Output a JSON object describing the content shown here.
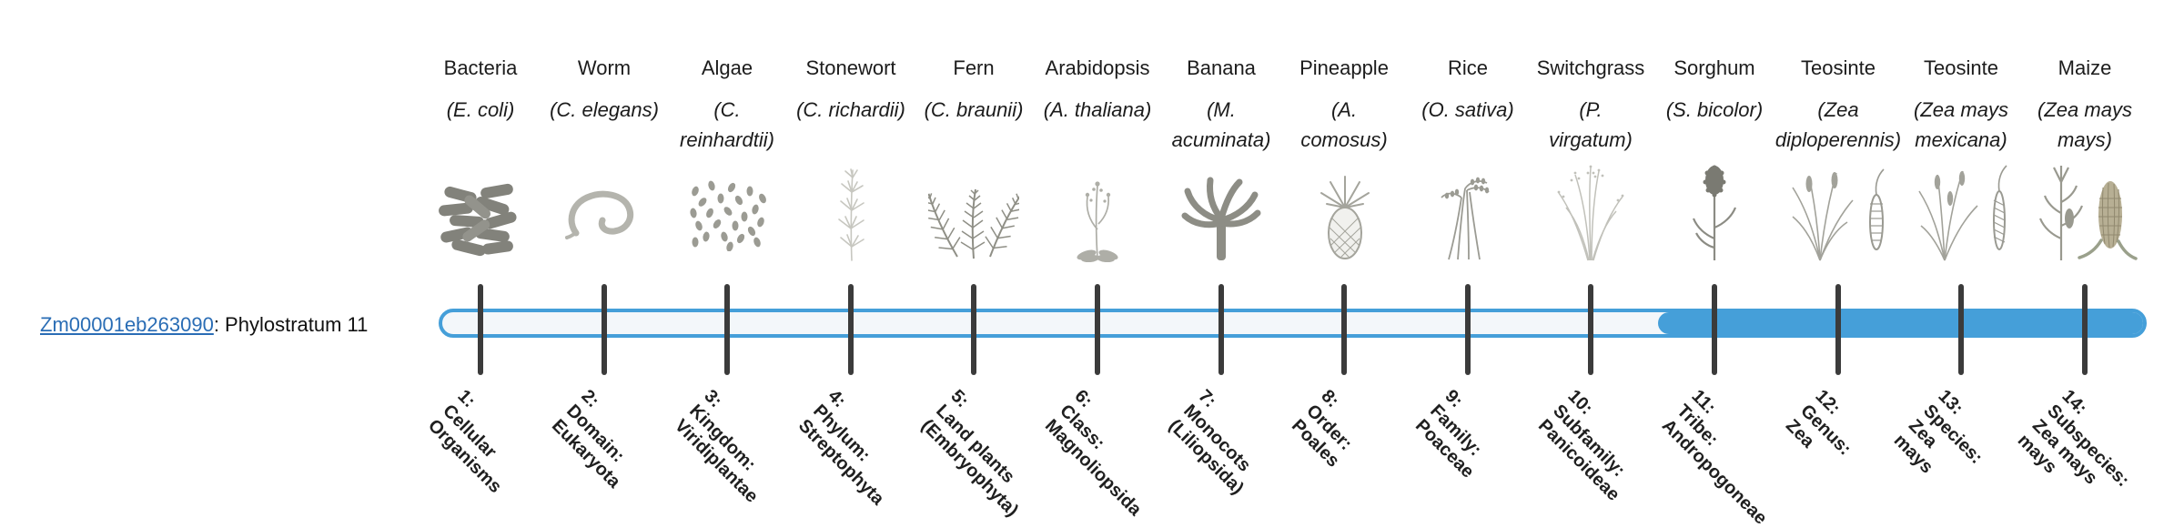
{
  "gene_label": {
    "link_text": "Zm00001eb263090",
    "rest_text": ": Phylostratum 11"
  },
  "phylostratum": {
    "value": 11,
    "filled_range": [
      11,
      14
    ],
    "total_strata": 14
  },
  "colors": {
    "accent_blue": "#459fd9",
    "bar_track": "#f3f7fa",
    "tick": "#3b3b3b",
    "link": "#2a6db5"
  },
  "organisms": [
    {
      "name": "Bacteria",
      "latin_lines": [
        "(E. coli)"
      ],
      "icon": "bacteria-icon",
      "tick_lines": [
        "1:",
        "Cellular",
        "Organisms"
      ]
    },
    {
      "name": "Worm",
      "latin_lines": [
        "(C. elegans)"
      ],
      "icon": "worm-icon",
      "tick_lines": [
        "2:",
        "Domain:",
        "Eukaryota"
      ]
    },
    {
      "name": "Algae",
      "latin_lines": [
        "(C.",
        "reinhardtii)"
      ],
      "icon": "algae-icon",
      "tick_lines": [
        "3:",
        "Kingdom:",
        "Viridiplantae"
      ]
    },
    {
      "name": "Stonewort",
      "latin_lines": [
        "(C. richardii)"
      ],
      "icon": "stonewort-icon",
      "tick_lines": [
        "4:",
        "Phylum:",
        "Streptophyta"
      ]
    },
    {
      "name": "Fern",
      "latin_lines": [
        "(C. braunii)"
      ],
      "icon": "fern-icon",
      "tick_lines": [
        "5:",
        "Land plants",
        "(Embryophyta)"
      ]
    },
    {
      "name": "Arabidopsis",
      "latin_lines": [
        "(A. thaliana)"
      ],
      "icon": "arabidopsis-icon",
      "tick_lines": [
        "6:",
        "Class:",
        "Magnoliopsida"
      ]
    },
    {
      "name": "Banana",
      "latin_lines": [
        "(M.",
        "acuminata)"
      ],
      "icon": "banana-icon",
      "tick_lines": [
        "7:",
        "Monocots",
        "(Liliopsida)"
      ]
    },
    {
      "name": "Pineapple",
      "latin_lines": [
        "(A.",
        "comosus)"
      ],
      "icon": "pineapple-icon",
      "tick_lines": [
        "8:",
        "Order:",
        "Poales"
      ]
    },
    {
      "name": "Rice",
      "latin_lines": [
        "(O. sativa)"
      ],
      "icon": "rice-icon",
      "tick_lines": [
        "9:",
        "Family:",
        "Poaceae"
      ]
    },
    {
      "name": "Switchgrass",
      "latin_lines": [
        "(P.",
        "virgatum)"
      ],
      "icon": "switchgrass-icon",
      "tick_lines": [
        "10:",
        "Subfamily:",
        "Panicoideae"
      ]
    },
    {
      "name": "Sorghum",
      "latin_lines": [
        "(S. bicolor)"
      ],
      "icon": "sorghum-icon",
      "tick_lines": [
        "11:",
        "Tribe:",
        "Andropogoneae"
      ]
    },
    {
      "name": "Teosinte",
      "latin_lines": [
        "(Zea",
        "diploperennis)"
      ],
      "icon": "teosinte-icon",
      "tick_lines": [
        "12:",
        "Genus:",
        "Zea"
      ]
    },
    {
      "name": "Teosinte",
      "latin_lines": [
        "(Zea mays",
        "mexicana)"
      ],
      "icon": "teosinte-icon",
      "tick_lines": [
        "13:",
        "Species:",
        "Zea",
        "mays"
      ]
    },
    {
      "name": "Maize",
      "latin_lines": [
        "(Zea mays",
        "mays)"
      ],
      "icon": "maize-icon",
      "tick_lines": [
        "14:",
        "Subspecies:",
        "Zea mays",
        "mays"
      ]
    }
  ]
}
